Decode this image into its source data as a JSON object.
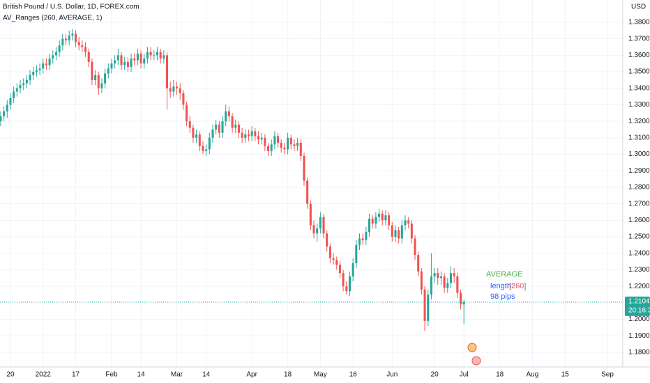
{
  "chart_data": {
    "type": "candlestick",
    "title": "British Pound / U.S. Dollar, 1D, FOREX.com",
    "subtitle": "AV_Ranges (260, AVERAGE, 1)",
    "currency_label": "USD",
    "grid": true,
    "up_color": "#26a69a",
    "down_color": "#ef5350",
    "xlim": [
      -0.2,
      190.7
    ],
    "xticks": [
      {
        "value": 3,
        "label": "20"
      },
      {
        "value": 13,
        "label": "2022"
      },
      {
        "value": 23,
        "label": "17"
      },
      {
        "value": 34,
        "label": "Feb"
      },
      {
        "value": 43,
        "label": "14"
      },
      {
        "value": 54,
        "label": "Mar"
      },
      {
        "value": 63,
        "label": "14"
      },
      {
        "value": 77,
        "label": "Apr"
      },
      {
        "value": 88,
        "label": "18"
      },
      {
        "value": 98,
        "label": "May"
      },
      {
        "value": 108,
        "label": "16"
      },
      {
        "value": 120,
        "label": "Jun"
      },
      {
        "value": 133,
        "label": "20"
      },
      {
        "value": 142,
        "label": "Jul"
      },
      {
        "value": 153,
        "label": "18"
      },
      {
        "value": 163,
        "label": "Aug"
      },
      {
        "value": 173,
        "label": "15"
      },
      {
        "value": 186,
        "label": "Sep"
      }
    ],
    "ylim": [
      1.1711,
      1.3935
    ],
    "yticks": [
      {
        "value": 1.18,
        "label": "1.18000"
      },
      {
        "value": 1.19,
        "label": "1.19000"
      },
      {
        "value": 1.2,
        "label": "1.20000"
      },
      {
        "value": 1.21,
        "label": "1.21000"
      },
      {
        "value": 1.22,
        "label": "1.22000"
      },
      {
        "value": 1.23,
        "label": "1.23000"
      },
      {
        "value": 1.24,
        "label": "1.24000"
      },
      {
        "value": 1.25,
        "label": "1.25000"
      },
      {
        "value": 1.26,
        "label": "1.26000"
      },
      {
        "value": 1.27,
        "label": "1.27000"
      },
      {
        "value": 1.28,
        "label": "1.28000"
      },
      {
        "value": 1.29,
        "label": "1.29000"
      },
      {
        "value": 1.3,
        "label": "1.30000"
      },
      {
        "value": 1.31,
        "label": "1.31000"
      },
      {
        "value": 1.32,
        "label": "1.32000"
      },
      {
        "value": 1.33,
        "label": "1.33000"
      },
      {
        "value": 1.34,
        "label": "1.34000"
      },
      {
        "value": 1.35,
        "label": "1.35000"
      },
      {
        "value": 1.36,
        "label": "1.36000"
      },
      {
        "value": 1.37,
        "label": "1.37000"
      },
      {
        "value": 1.38,
        "label": "1.38000"
      }
    ],
    "open": [
      1.32,
      1.323,
      1.326,
      1.33,
      1.334,
      1.338,
      1.34,
      1.342,
      1.343,
      1.345,
      1.348,
      1.35,
      1.351,
      1.352,
      1.355,
      1.354,
      1.358,
      1.36,
      1.362,
      1.366,
      1.37,
      1.369,
      1.372,
      1.373,
      1.368,
      1.366,
      1.365,
      1.362,
      1.356,
      1.345,
      1.348,
      1.34,
      1.343,
      1.349,
      1.352,
      1.355,
      1.357,
      1.36,
      1.354,
      1.356,
      1.353,
      1.358,
      1.357,
      1.361,
      1.355,
      1.358,
      1.362,
      1.36,
      1.36,
      1.362,
      1.358,
      1.36,
      1.34,
      1.338,
      1.341,
      1.34,
      1.337,
      1.33,
      1.32,
      1.316,
      1.31,
      1.312,
      1.305,
      1.302,
      1.303,
      1.31,
      1.315,
      1.318,
      1.313,
      1.32,
      1.326,
      1.323,
      1.316,
      1.318,
      1.313,
      1.31,
      1.312,
      1.311,
      1.314,
      1.311,
      1.309,
      1.31,
      1.305,
      1.302,
      1.306,
      1.311,
      1.307,
      1.304,
      1.303,
      1.31,
      1.306,
      1.305,
      1.307,
      1.299,
      1.284,
      1.27,
      1.257,
      1.252,
      1.255,
      1.262,
      1.252,
      1.244,
      1.237,
      1.236,
      1.233,
      1.228,
      1.22,
      1.217,
      1.226,
      1.234,
      1.245,
      1.249,
      1.248,
      1.253,
      1.261,
      1.258,
      1.262,
      1.264,
      1.26,
      1.263,
      1.257,
      1.25,
      1.254,
      1.249,
      1.257,
      1.26,
      1.258,
      1.249,
      1.239,
      1.229,
      1.218,
      1.199,
      1.215,
      1.226,
      1.228,
      1.225,
      1.226,
      1.219,
      1.222,
      1.228,
      1.226,
      1.216,
      1.209
    ],
    "high": [
      1.326,
      1.329,
      1.333,
      1.337,
      1.341,
      1.343,
      1.345,
      1.346,
      1.348,
      1.351,
      1.353,
      1.354,
      1.355,
      1.358,
      1.358,
      1.361,
      1.363,
      1.365,
      1.369,
      1.373,
      1.373,
      1.375,
      1.376,
      1.375,
      1.371,
      1.369,
      1.368,
      1.364,
      1.358,
      1.351,
      1.35,
      1.346,
      1.352,
      1.355,
      1.358,
      1.36,
      1.364,
      1.362,
      1.359,
      1.359,
      1.361,
      1.361,
      1.364,
      1.363,
      1.361,
      1.365,
      1.365,
      1.363,
      1.365,
      1.364,
      1.363,
      1.362,
      1.344,
      1.345,
      1.344,
      1.343,
      1.339,
      1.332,
      1.323,
      1.318,
      1.315,
      1.314,
      1.308,
      1.306,
      1.313,
      1.318,
      1.321,
      1.32,
      1.323,
      1.33,
      1.329,
      1.325,
      1.321,
      1.32,
      1.316,
      1.315,
      1.315,
      1.317,
      1.316,
      1.314,
      1.313,
      1.312,
      1.307,
      1.309,
      1.314,
      1.313,
      1.309,
      1.307,
      1.313,
      1.312,
      1.309,
      1.31,
      1.309,
      1.301,
      1.286,
      1.272,
      1.26,
      1.258,
      1.265,
      1.264,
      1.254,
      1.246,
      1.24,
      1.238,
      1.235,
      1.23,
      1.223,
      1.229,
      1.237,
      1.248,
      1.252,
      1.252,
      1.256,
      1.264,
      1.263,
      1.265,
      1.267,
      1.266,
      1.266,
      1.265,
      1.259,
      1.257,
      1.256,
      1.26,
      1.263,
      1.262,
      1.26,
      1.251,
      1.241,
      1.231,
      1.22,
      1.218,
      1.24,
      1.231,
      1.231,
      1.229,
      1.228,
      1.225,
      1.232,
      1.231,
      1.228,
      1.218,
      1.212
    ],
    "low": [
      1.317,
      1.32,
      1.322,
      1.327,
      1.331,
      1.335,
      1.337,
      1.339,
      1.34,
      1.342,
      1.345,
      1.347,
      1.348,
      1.349,
      1.351,
      1.351,
      1.355,
      1.357,
      1.359,
      1.363,
      1.366,
      1.366,
      1.369,
      1.365,
      1.363,
      1.362,
      1.359,
      1.353,
      1.342,
      1.342,
      1.336,
      1.337,
      1.34,
      1.346,
      1.349,
      1.352,
      1.354,
      1.351,
      1.351,
      1.35,
      1.35,
      1.354,
      1.354,
      1.352,
      1.352,
      1.355,
      1.357,
      1.357,
      1.357,
      1.355,
      1.355,
      1.327,
      1.334,
      1.335,
      1.336,
      1.333,
      1.327,
      1.317,
      1.313,
      1.307,
      1.307,
      1.302,
      1.3,
      1.299,
      1.3,
      1.307,
      1.312,
      1.31,
      1.31,
      1.317,
      1.32,
      1.313,
      1.313,
      1.31,
      1.307,
      1.307,
      1.308,
      1.308,
      1.308,
      1.306,
      1.306,
      1.302,
      1.299,
      1.299,
      1.303,
      1.304,
      1.301,
      1.3,
      1.3,
      1.303,
      1.302,
      1.302,
      1.296,
      1.281,
      1.267,
      1.254,
      1.249,
      1.247,
      1.252,
      1.249,
      1.241,
      1.234,
      1.233,
      1.23,
      1.225,
      1.217,
      1.215,
      1.214,
      1.223,
      1.231,
      1.242,
      1.245,
      1.245,
      1.25,
      1.255,
      1.255,
      1.259,
      1.257,
      1.257,
      1.254,
      1.247,
      1.247,
      1.246,
      1.246,
      1.254,
      1.255,
      1.246,
      1.236,
      1.226,
      1.215,
      1.193,
      1.196,
      1.212,
      1.222,
      1.221,
      1.221,
      1.216,
      1.216,
      1.219,
      1.222,
      1.213,
      1.206,
      1.197
    ],
    "close": [
      1.323,
      1.326,
      1.33,
      1.334,
      1.338,
      1.34,
      1.342,
      1.343,
      1.345,
      1.348,
      1.35,
      1.351,
      1.352,
      1.355,
      1.354,
      1.358,
      1.36,
      1.362,
      1.366,
      1.37,
      1.369,
      1.372,
      1.373,
      1.368,
      1.366,
      1.365,
      1.362,
      1.356,
      1.345,
      1.348,
      1.34,
      1.343,
      1.349,
      1.352,
      1.355,
      1.357,
      1.36,
      1.354,
      1.356,
      1.353,
      1.358,
      1.357,
      1.361,
      1.355,
      1.358,
      1.362,
      1.36,
      1.36,
      1.362,
      1.358,
      1.36,
      1.34,
      1.338,
      1.341,
      1.34,
      1.337,
      1.33,
      1.32,
      1.316,
      1.31,
      1.312,
      1.305,
      1.302,
      1.303,
      1.31,
      1.315,
      1.318,
      1.313,
      1.32,
      1.326,
      1.323,
      1.316,
      1.318,
      1.313,
      1.31,
      1.312,
      1.311,
      1.314,
      1.311,
      1.309,
      1.31,
      1.305,
      1.302,
      1.306,
      1.311,
      1.307,
      1.304,
      1.303,
      1.31,
      1.306,
      1.305,
      1.307,
      1.299,
      1.284,
      1.27,
      1.257,
      1.252,
      1.255,
      1.262,
      1.252,
      1.244,
      1.237,
      1.236,
      1.233,
      1.228,
      1.22,
      1.217,
      1.226,
      1.234,
      1.245,
      1.249,
      1.248,
      1.253,
      1.261,
      1.258,
      1.262,
      1.264,
      1.26,
      1.263,
      1.257,
      1.25,
      1.254,
      1.249,
      1.257,
      1.26,
      1.258,
      1.249,
      1.239,
      1.229,
      1.218,
      1.199,
      1.215,
      1.226,
      1.228,
      1.225,
      1.226,
      1.219,
      1.222,
      1.228,
      1.226,
      1.216,
      1.209,
      1.2104
    ],
    "last_price": {
      "value": 1.21041,
      "label": "1.21041"
    },
    "countdown": "20:16:32",
    "annotations": {
      "method": "AVERAGE",
      "length_label": "length:",
      "length_value": "[260]",
      "pips": "98 pips"
    }
  }
}
